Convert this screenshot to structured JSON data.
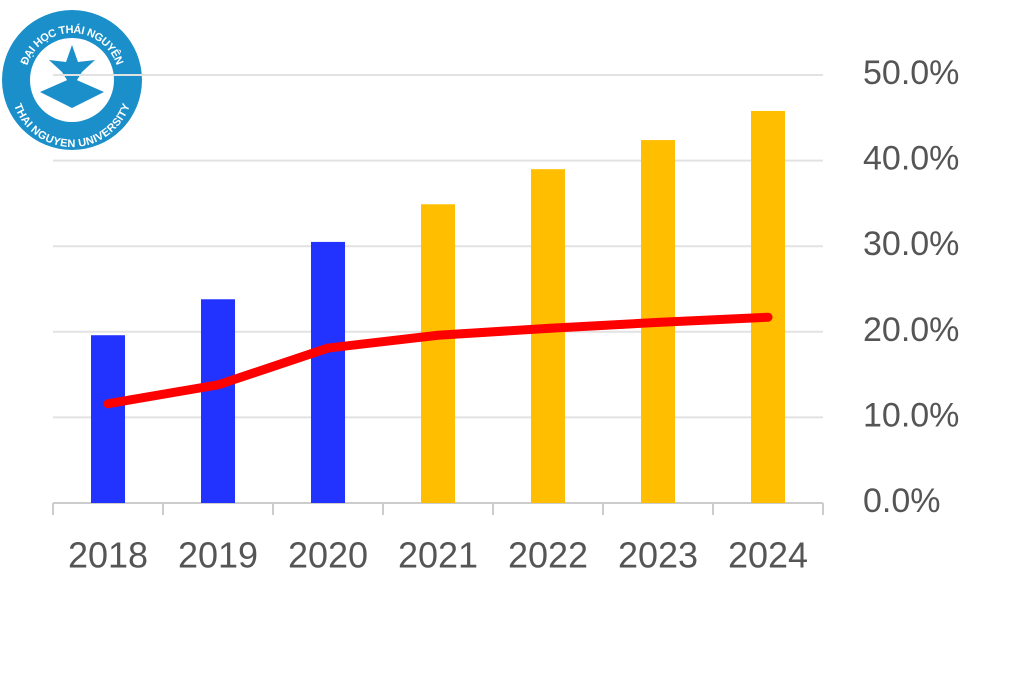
{
  "logo": {
    "top_text": "ĐẠI HỌC THÁI NGUYÊN",
    "bottom_text": "THAI NGUYEN UNIVERSITY"
  },
  "chart_data": {
    "type": "bar_line",
    "categories": [
      "2018",
      "2019",
      "2020",
      "2021",
      "2022",
      "2023",
      "2024"
    ],
    "series": [
      {
        "type": "bar",
        "colors": [
          "#2233ff",
          "#2233ff",
          "#2233ff",
          "#ffbf00",
          "#ffbf00",
          "#ffbf00",
          "#ffbf00"
        ],
        "values": [
          19.6,
          23.8,
          30.5,
          34.9,
          39.0,
          42.4,
          45.8
        ]
      },
      {
        "type": "line",
        "color": "#ff0000",
        "values": [
          11.6,
          13.8,
          18.1,
          19.6,
          20.4,
          21.1,
          21.7
        ]
      }
    ],
    "ylim": [
      0,
      50
    ],
    "yticks": [
      {
        "value": 0,
        "label": "0.0%"
      },
      {
        "value": 10,
        "label": "10.0%"
      },
      {
        "value": 20,
        "label": "20.0%"
      },
      {
        "value": 30,
        "label": "30.0%"
      },
      {
        "value": 40,
        "label": "40.0%"
      },
      {
        "value": 50,
        "label": "50.0%"
      }
    ],
    "y_axis_side": "right",
    "grid": true
  }
}
